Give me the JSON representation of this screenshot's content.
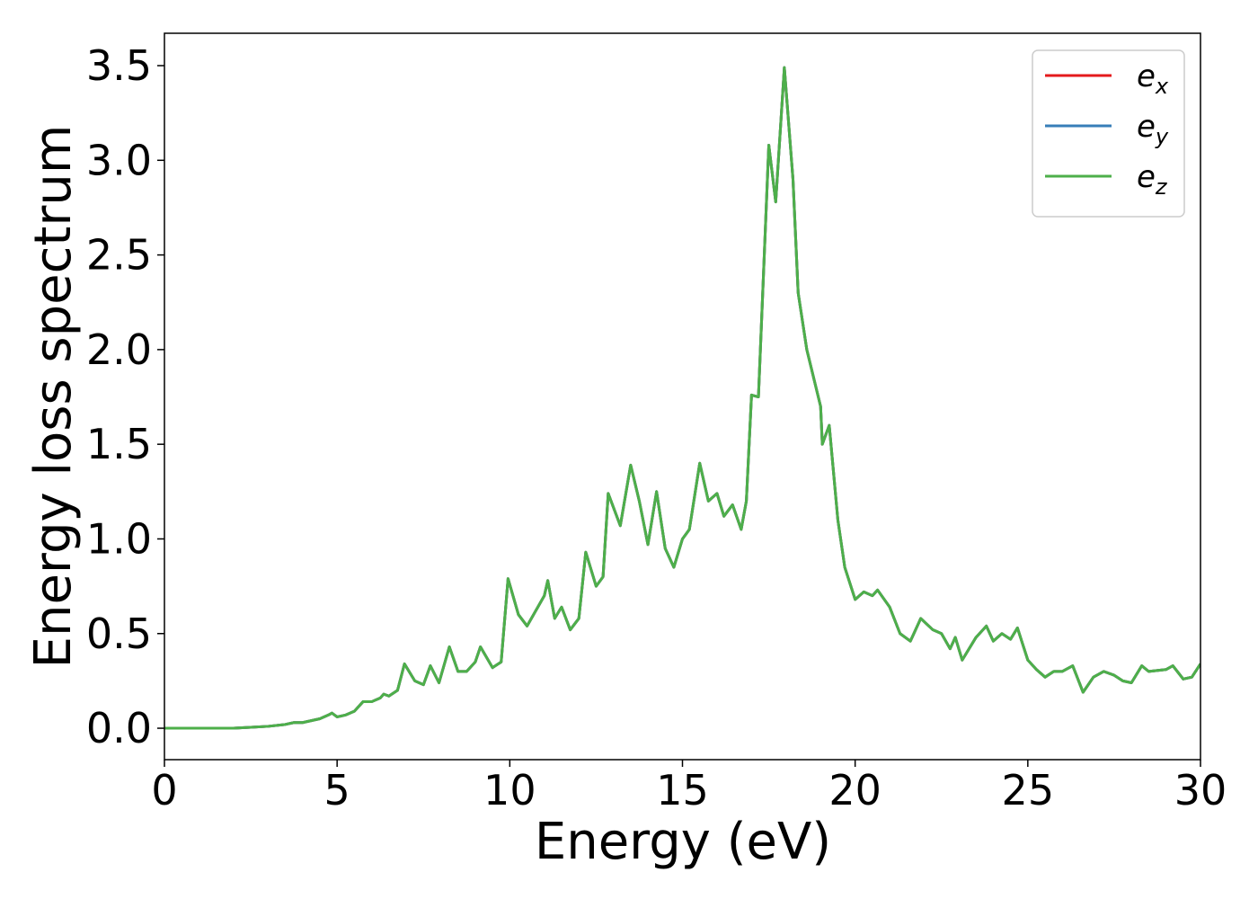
{
  "chart_data": {
    "type": "line",
    "x_label": "Energy (eV)",
    "y_label": "Energy loss spectrum",
    "xlim": [
      0,
      30
    ],
    "ylim": [
      -0.166,
      3.671
    ],
    "xticks": [
      0,
      5,
      10,
      15,
      20,
      25,
      30
    ],
    "yticks": [
      {
        "value": 0,
        "label": "0.0"
      },
      0.5,
      {
        "value": 1,
        "label": "1.0"
      },
      1.5,
      {
        "value": 2,
        "label": "2.0"
      },
      2.5,
      {
        "value": 3,
        "label": "3.0"
      },
      3.5
    ],
    "grid": false,
    "legend": "upper right",
    "x": [
      0,
      1,
      2,
      2.5,
      3,
      3.5,
      3.75,
      4,
      4.25,
      4.5,
      4.75,
      4.85,
      5,
      5.25,
      5.5,
      5.75,
      6,
      6.25,
      6.35,
      6.5,
      6.75,
      6.95,
      7.25,
      7.5,
      7.7,
      7.95,
      8.25,
      8.5,
      8.75,
      9,
      9.15,
      9.5,
      9.75,
      9.95,
      10.25,
      10.5,
      10.75,
      11,
      11.1,
      11.3,
      11.5,
      11.75,
      12,
      12.2,
      12.5,
      12.7,
      12.85,
      13.2,
      13.5,
      13.75,
      14,
      14.25,
      14.5,
      14.75,
      15,
      15.2,
      15.5,
      15.75,
      16,
      16.2,
      16.45,
      16.7,
      16.85,
      17,
      17.2,
      17.5,
      17.7,
      17.95,
      18.2,
      18.35,
      18.6,
      19,
      19.05,
      19.25,
      19.5,
      19.7,
      20,
      20.25,
      20.5,
      20.65,
      21,
      21.3,
      21.6,
      21.9,
      22.25,
      22.5,
      22.75,
      22.9,
      23.1,
      23.5,
      23.8,
      24,
      24.25,
      24.5,
      24.7,
      25,
      25.25,
      25.5,
      25.75,
      26,
      26.3,
      26.6,
      26.9,
      27.2,
      27.5,
      27.75,
      28,
      28.3,
      28.5,
      29,
      29.2,
      29.5,
      29.75,
      30
    ],
    "series": [
      {
        "name": "ex",
        "color": "#e41a1c",
        "values": [
          0,
          0,
          0,
          0.005,
          0.01,
          0.02,
          0.03,
          0.03,
          0.04,
          0.05,
          0.07,
          0.08,
          0.06,
          0.07,
          0.09,
          0.14,
          0.14,
          0.16,
          0.18,
          0.17,
          0.2,
          0.34,
          0.25,
          0.23,
          0.33,
          0.24,
          0.43,
          0.3,
          0.3,
          0.35,
          0.43,
          0.32,
          0.35,
          0.79,
          0.6,
          0.54,
          0.62,
          0.7,
          0.78,
          0.58,
          0.64,
          0.52,
          0.58,
          0.93,
          0.75,
          0.8,
          1.24,
          1.07,
          1.39,
          1.2,
          0.97,
          1.25,
          0.95,
          0.85,
          1.0,
          1.05,
          1.4,
          1.2,
          1.24,
          1.12,
          1.18,
          1.05,
          1.2,
          1.76,
          1.75,
          3.08,
          2.78,
          3.49,
          2.9,
          2.3,
          2.0,
          1.7,
          1.5,
          1.6,
          1.1,
          0.85,
          0.68,
          0.72,
          0.7,
          0.73,
          0.64,
          0.5,
          0.46,
          0.58,
          0.52,
          0.5,
          0.42,
          0.48,
          0.36,
          0.48,
          0.54,
          0.46,
          0.5,
          0.47,
          0.53,
          0.36,
          0.31,
          0.27,
          0.3,
          0.3,
          0.33,
          0.19,
          0.27,
          0.3,
          0.28,
          0.25,
          0.24,
          0.33,
          0.3,
          0.31,
          0.33,
          0.26,
          0.27,
          0.34
        ]
      },
      {
        "name": "ey",
        "color": "#377eb8",
        "values": [
          0,
          0,
          0,
          0.005,
          0.01,
          0.02,
          0.03,
          0.03,
          0.04,
          0.05,
          0.07,
          0.08,
          0.06,
          0.07,
          0.09,
          0.14,
          0.14,
          0.16,
          0.18,
          0.17,
          0.2,
          0.34,
          0.25,
          0.23,
          0.33,
          0.24,
          0.43,
          0.3,
          0.3,
          0.35,
          0.43,
          0.32,
          0.35,
          0.79,
          0.6,
          0.54,
          0.62,
          0.7,
          0.78,
          0.58,
          0.64,
          0.52,
          0.58,
          0.93,
          0.75,
          0.8,
          1.24,
          1.07,
          1.39,
          1.2,
          0.97,
          1.25,
          0.95,
          0.85,
          1.0,
          1.05,
          1.4,
          1.2,
          1.24,
          1.12,
          1.18,
          1.05,
          1.2,
          1.76,
          1.75,
          3.08,
          2.78,
          3.49,
          2.9,
          2.3,
          2.0,
          1.7,
          1.5,
          1.6,
          1.1,
          0.85,
          0.68,
          0.72,
          0.7,
          0.73,
          0.64,
          0.5,
          0.46,
          0.58,
          0.52,
          0.5,
          0.42,
          0.48,
          0.36,
          0.48,
          0.54,
          0.46,
          0.5,
          0.47,
          0.53,
          0.36,
          0.31,
          0.27,
          0.3,
          0.3,
          0.33,
          0.19,
          0.27,
          0.3,
          0.28,
          0.25,
          0.24,
          0.33,
          0.3,
          0.31,
          0.33,
          0.26,
          0.27,
          0.34
        ]
      },
      {
        "name": "ez",
        "color": "#4daf4a",
        "values": [
          0,
          0,
          0,
          0.005,
          0.01,
          0.02,
          0.03,
          0.03,
          0.04,
          0.05,
          0.07,
          0.08,
          0.06,
          0.07,
          0.09,
          0.14,
          0.14,
          0.16,
          0.18,
          0.17,
          0.2,
          0.34,
          0.25,
          0.23,
          0.33,
          0.24,
          0.43,
          0.3,
          0.3,
          0.35,
          0.43,
          0.32,
          0.35,
          0.79,
          0.6,
          0.54,
          0.62,
          0.7,
          0.78,
          0.58,
          0.64,
          0.52,
          0.58,
          0.93,
          0.75,
          0.8,
          1.24,
          1.07,
          1.39,
          1.2,
          0.97,
          1.25,
          0.95,
          0.85,
          1.0,
          1.05,
          1.4,
          1.2,
          1.24,
          1.12,
          1.18,
          1.05,
          1.2,
          1.76,
          1.75,
          3.08,
          2.78,
          3.49,
          2.9,
          2.3,
          2.0,
          1.7,
          1.5,
          1.6,
          1.1,
          0.85,
          0.68,
          0.72,
          0.7,
          0.73,
          0.64,
          0.5,
          0.46,
          0.58,
          0.52,
          0.5,
          0.42,
          0.48,
          0.36,
          0.48,
          0.54,
          0.46,
          0.5,
          0.47,
          0.53,
          0.36,
          0.31,
          0.27,
          0.3,
          0.3,
          0.33,
          0.19,
          0.27,
          0.3,
          0.28,
          0.25,
          0.24,
          0.33,
          0.3,
          0.31,
          0.33,
          0.26,
          0.27,
          0.34
        ]
      }
    ]
  }
}
